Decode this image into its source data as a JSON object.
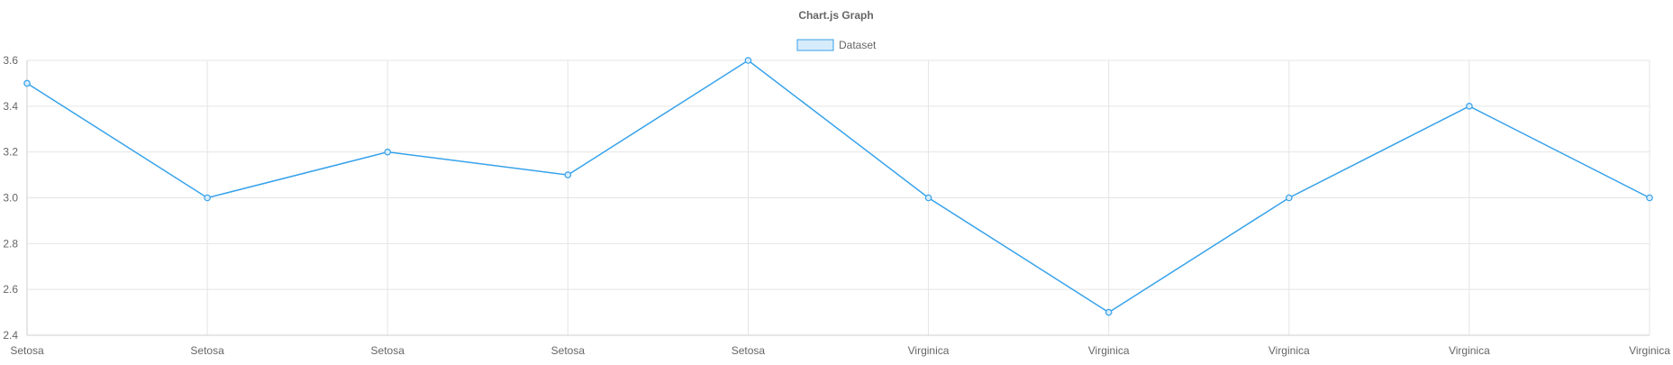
{
  "chart_data": {
    "type": "line",
    "title": "Chart.js Graph",
    "categories": [
      "Setosa",
      "Setosa",
      "Setosa",
      "Setosa",
      "Setosa",
      "Virginica",
      "Virginica",
      "Virginica",
      "Virginica",
      "Virginica"
    ],
    "series": [
      {
        "name": "Dataset",
        "values": [
          3.5,
          3.0,
          3.2,
          3.1,
          3.6,
          3.0,
          2.5,
          3.0,
          3.4,
          3.0
        ],
        "color": "#36a2eb",
        "fill": "#d7ecfb"
      }
    ],
    "yticks": [
      "3.6",
      "3.4",
      "3.2",
      "3.0",
      "2.8",
      "2.6",
      "2.4"
    ],
    "ylim": [
      2.4,
      3.6
    ],
    "grid": true,
    "legend_position": "top"
  }
}
